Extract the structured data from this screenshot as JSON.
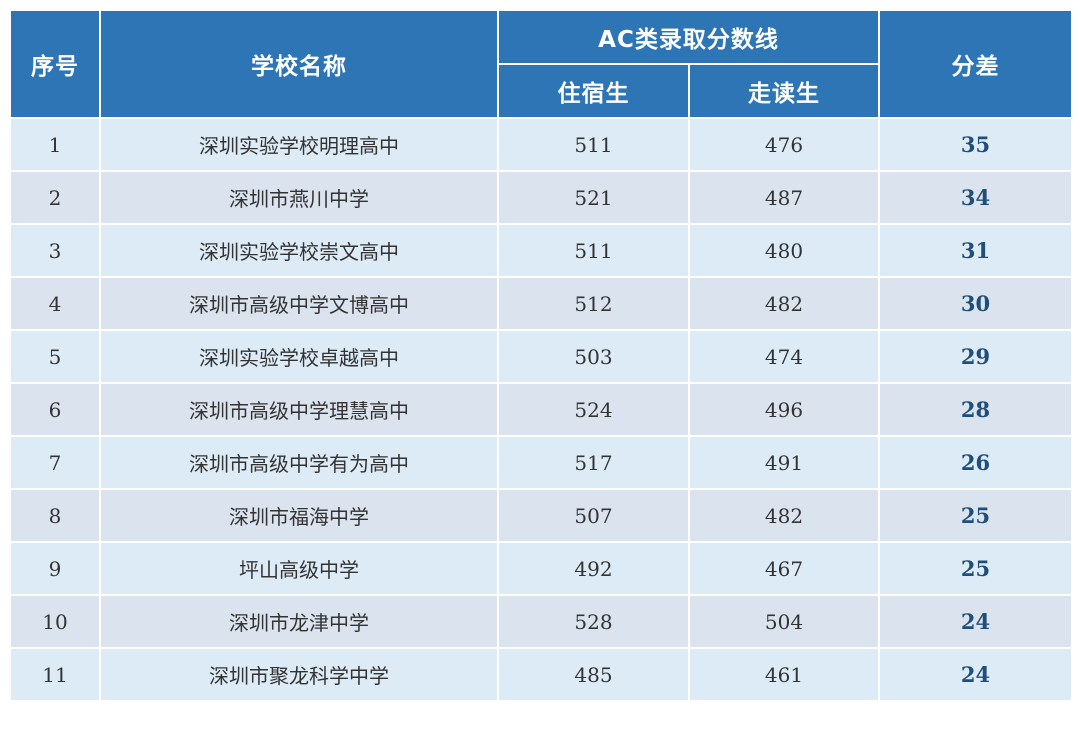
{
  "table": {
    "headers": {
      "index": "序号",
      "school": "学校名称",
      "score_group": "AC类录取分数线",
      "boarding": "住宿生",
      "day": "走读生",
      "difference": "分差"
    },
    "rows": [
      {
        "index": "1",
        "school": "深圳实验学校明理高中",
        "boarding": "511",
        "day": "476",
        "difference": "35"
      },
      {
        "index": "2",
        "school": "深圳市燕川中学",
        "boarding": "521",
        "day": "487",
        "difference": "34"
      },
      {
        "index": "3",
        "school": "深圳实验学校崇文高中",
        "boarding": "511",
        "day": "480",
        "difference": "31"
      },
      {
        "index": "4",
        "school": "深圳市高级中学文博高中",
        "boarding": "512",
        "day": "482",
        "difference": "30"
      },
      {
        "index": "5",
        "school": "深圳实验学校卓越高中",
        "boarding": "503",
        "day": "474",
        "difference": "29"
      },
      {
        "index": "6",
        "school": "深圳市高级中学理慧高中",
        "boarding": "524",
        "day": "496",
        "difference": "28"
      },
      {
        "index": "7",
        "school": "深圳市高级中学有为高中",
        "boarding": "517",
        "day": "491",
        "difference": "26"
      },
      {
        "index": "8",
        "school": "深圳市福海中学",
        "boarding": "507",
        "day": "482",
        "difference": "25"
      },
      {
        "index": "9",
        "school": "坪山高级中学",
        "boarding": "492",
        "day": "467",
        "difference": "25"
      },
      {
        "index": "10",
        "school": "深圳市龙津中学",
        "boarding": "528",
        "day": "504",
        "difference": "24"
      },
      {
        "index": "11",
        "school": "深圳市聚龙科学中学",
        "boarding": "485",
        "day": "461",
        "difference": "24"
      }
    ]
  },
  "colors": {
    "header_bg": "#2e75b6",
    "header_text": "#ffffff",
    "row_odd_bg": "#ddebf7",
    "row_even_bg": "#dbe3ee",
    "difference_text": "#1f4e79"
  }
}
